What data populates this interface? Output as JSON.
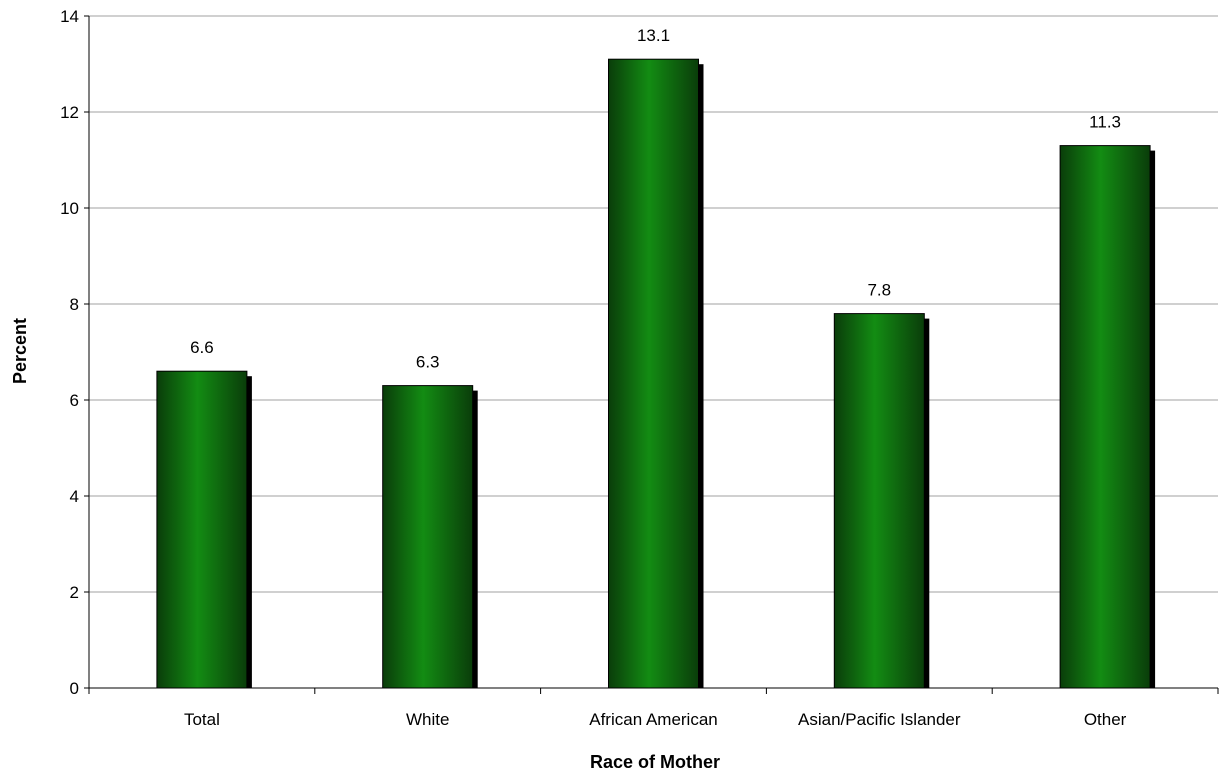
{
  "chart_data": {
    "type": "bar",
    "categories": [
      "Total",
      "White",
      "African American",
      "Asian/Pacific Islander",
      "Other"
    ],
    "values": [
      6.6,
      6.3,
      13.1,
      7.8,
      11.3
    ],
    "data_labels": [
      "6.6",
      "6.3",
      "13.1",
      "7.8",
      "11.3"
    ],
    "xlabel": "Race of Mother",
    "ylabel": "Percent",
    "ylim": [
      0,
      14
    ],
    "yticks": [
      0,
      2,
      4,
      6,
      8,
      10,
      12,
      14
    ],
    "ytick_labels": [
      "0",
      "2",
      "4",
      "6",
      "8",
      "10",
      "12",
      "14"
    ],
    "grid": true,
    "legend": "none",
    "colors": {
      "bar_dark": "#0a3d0a",
      "bar_mid": "#138c13",
      "bar_light": "#0c6a0c",
      "shadow": "#000000",
      "gridline": "#a0a0a0",
      "axis": "#000000"
    }
  }
}
